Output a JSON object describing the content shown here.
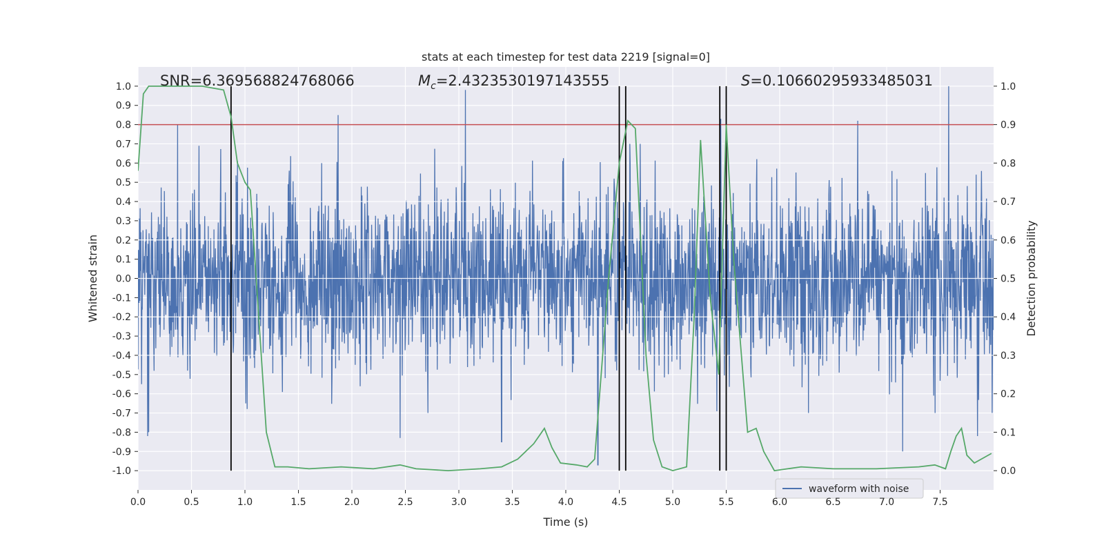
{
  "chart_data": {
    "type": "line",
    "title": "stats at each timestep for test data 2219 [signal=0]",
    "xlabel": "Time (s)",
    "ylabel": "Whitened strain",
    "y2label": "Detection probability",
    "xlim": [
      0,
      8
    ],
    "ylim": [
      -1.1,
      1.1
    ],
    "y2lim": [
      -0.05,
      1.05
    ],
    "xticks": [
      "0.0",
      "0.5",
      "1.0",
      "1.5",
      "2.0",
      "2.5",
      "3.0",
      "3.5",
      "4.0",
      "4.5",
      "5.0",
      "5.5",
      "6.0",
      "6.5",
      "7.0",
      "7.5"
    ],
    "yticks": [
      "1.0",
      "0.9",
      "0.8",
      "0.7",
      "0.6",
      "0.5",
      "0.4",
      "0.3",
      "0.2",
      "0.1",
      "0.0",
      "-0.1",
      "-0.2",
      "-0.3",
      "-0.4",
      "-0.5",
      "-0.6",
      "-0.7",
      "-0.8",
      "-0.9",
      "-1.0"
    ],
    "y2ticks": [
      "1.0",
      "0.9",
      "0.8",
      "0.7",
      "0.6",
      "0.5",
      "0.4",
      "0.3",
      "0.2",
      "0.1",
      "0.0"
    ],
    "grid": true,
    "legend": {
      "position": "lower-right",
      "entries": [
        "waveform with noise"
      ]
    },
    "annotations": {
      "snr": "SNR=6.369568824768066",
      "mc_prefix": "M",
      "mc_sub": "c",
      "mc_value": "=2.4323530197143555",
      "s_prefix": "S",
      "s_value": "=0.10660295933485031"
    },
    "threshold": {
      "axis": "y2",
      "value": 0.9,
      "color": "#c44e52"
    },
    "vlines": [
      0.87,
      4.5,
      4.56,
      5.44,
      5.5
    ],
    "colors": {
      "waveform": "#4c72b0",
      "probability": "#55a868",
      "vline": "#000000",
      "background": "#eaeaf2"
    },
    "series": [
      {
        "name": "waveform with noise",
        "axis": "y",
        "description_points": "dense noisy whitened strain, 0 to 8 s",
        "spike_times": [
          0.09,
          0.37,
          0.57,
          1.87,
          3.06,
          4.3,
          6.73,
          7.58,
          0.1,
          2.45,
          3.4,
          5.45,
          7.15,
          7.85
        ],
        "spike_values": [
          -0.82,
          0.8,
          0.69,
          0.85,
          0.98,
          -0.97,
          0.82,
          1.0,
          -0.8,
          -0.83,
          -0.85,
          0.83,
          -0.9,
          -0.82
        ]
      },
      {
        "name": "",
        "axis": "y2",
        "x": [
          0.0,
          0.05,
          0.1,
          0.3,
          0.6,
          0.8,
          0.87,
          0.93,
          1.0,
          1.05,
          1.2,
          1.28,
          1.4,
          1.6,
          1.9,
          2.2,
          2.45,
          2.6,
          2.9,
          3.2,
          3.4,
          3.55,
          3.7,
          3.8,
          3.87,
          3.95,
          4.1,
          4.2,
          4.27,
          4.4,
          4.5,
          4.58,
          4.65,
          4.75,
          4.82,
          4.9,
          5.0,
          5.13,
          5.2,
          5.26,
          5.35,
          5.43,
          5.5,
          5.57,
          5.7,
          5.78,
          5.85,
          5.95,
          6.2,
          6.5,
          6.9,
          7.3,
          7.45,
          7.55,
          7.6,
          7.65,
          7.7,
          7.75,
          7.82,
          7.98
        ],
        "y": [
          0.78,
          0.98,
          1.0,
          1.0,
          1.0,
          0.99,
          0.92,
          0.8,
          0.75,
          0.73,
          0.1,
          0.01,
          0.01,
          0.005,
          0.01,
          0.005,
          0.015,
          0.005,
          0.0,
          0.005,
          0.01,
          0.03,
          0.07,
          0.11,
          0.06,
          0.02,
          0.015,
          0.01,
          0.03,
          0.5,
          0.8,
          0.91,
          0.89,
          0.3,
          0.08,
          0.01,
          0.0,
          0.01,
          0.4,
          0.86,
          0.45,
          0.25,
          0.9,
          0.55,
          0.1,
          0.11,
          0.05,
          0.0,
          0.01,
          0.005,
          0.005,
          0.01,
          0.015,
          0.005,
          0.05,
          0.09,
          0.11,
          0.04,
          0.02,
          0.045
        ]
      }
    ]
  }
}
